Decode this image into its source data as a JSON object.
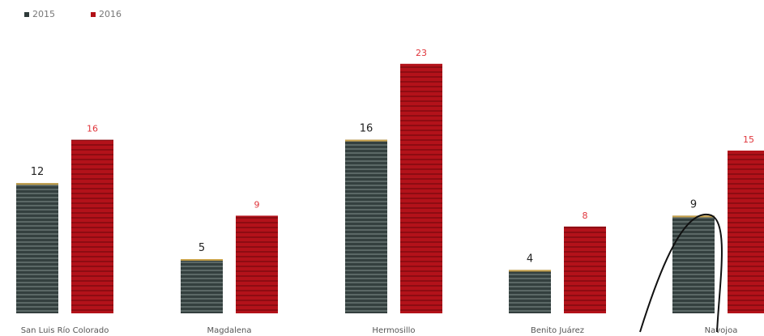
{
  "chart_data": {
    "type": "bar",
    "categories": [
      "San Luis Río Colorado",
      "Magdalena",
      "Hermosillo",
      "Benito Juárez",
      "Navojoa"
    ],
    "series": [
      {
        "name": "2015",
        "values": [
          12,
          5,
          16,
          4,
          9
        ],
        "color": "#2f3b3a"
      },
      {
        "name": "2016",
        "values": [
          16,
          9,
          23,
          8,
          15
        ],
        "color": "#b11016"
      }
    ],
    "legend_position": "top-left",
    "grid": false
  },
  "colors": {
    "label_2015": "#222222",
    "label_2016": "#e0353b",
    "category_label": "#555555"
  }
}
